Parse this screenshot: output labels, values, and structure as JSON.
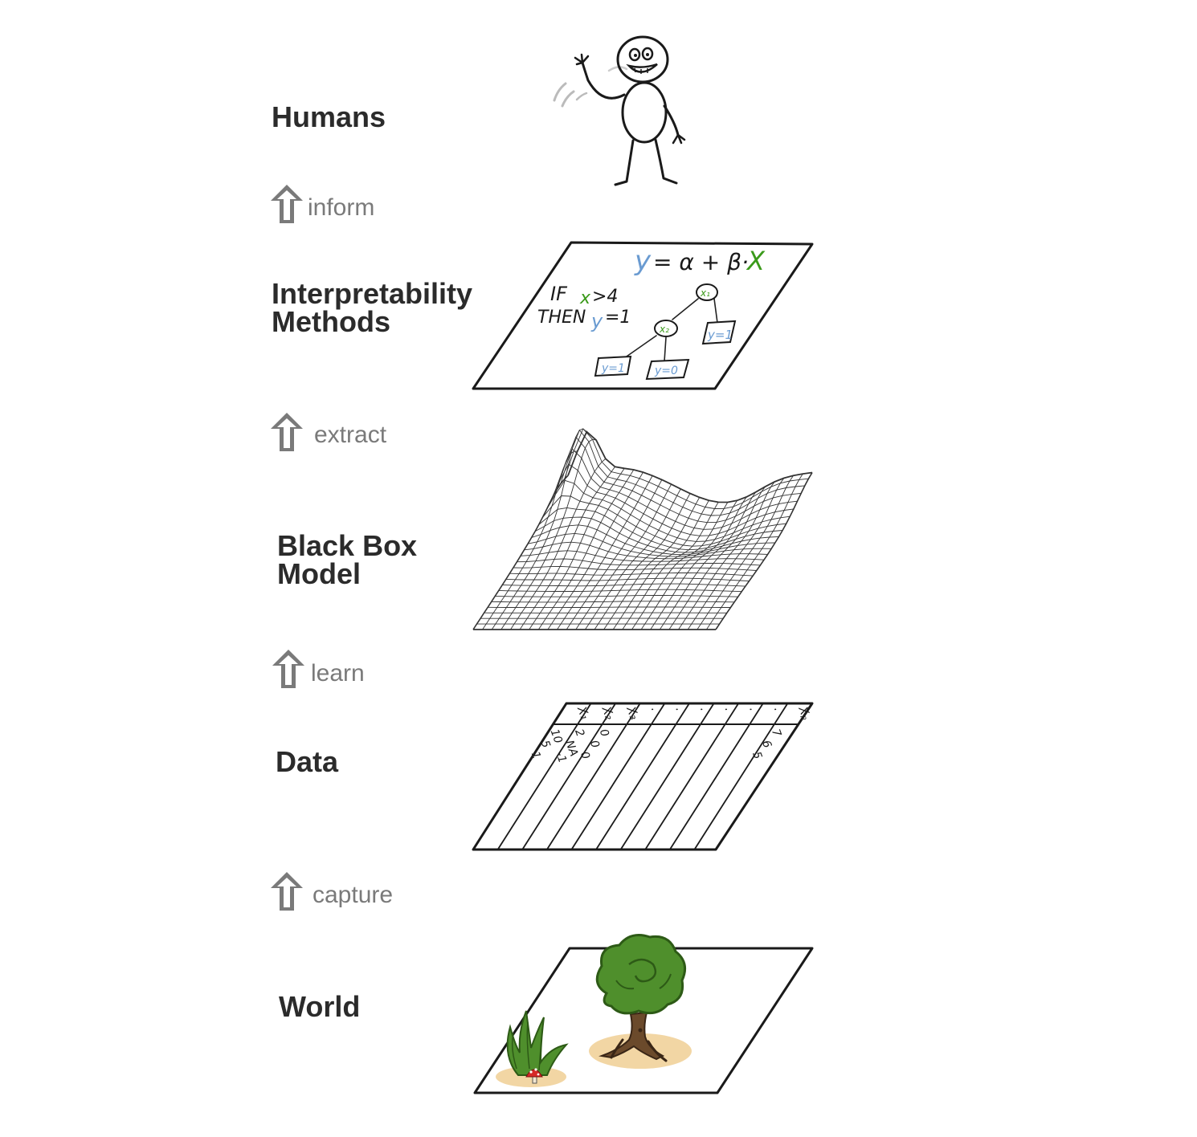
{
  "layers": {
    "humans": "Humans",
    "methods": "Interpretability\nMethods",
    "model": "Black Box\nModel",
    "data": "Data",
    "world": "World"
  },
  "verbs": {
    "inform": "inform",
    "extract": "extract",
    "learn": "learn",
    "capture": "capture"
  },
  "methods_panel": {
    "formula_y": "y",
    "formula_mid": "= α + β·",
    "formula_x": "X",
    "rule_if": "IF",
    "rule_x": "x",
    "rule_cond": ">4",
    "rule_then": "THEN",
    "rule_y": "y",
    "rule_out": "=1",
    "node_a": "x₁",
    "node_b": "x₂",
    "leaf_1": "y=1",
    "leaf_2": "y=1",
    "leaf_3": "y=0"
  },
  "data_table": {
    "headers": [
      "X₁",
      "X₂",
      "X₃",
      ".",
      ".",
      ".",
      ".",
      ".",
      ".",
      "Xₚ"
    ],
    "col1": [
      "10",
      "5",
      "1"
    ],
    "col2": [
      "2",
      "NA",
      "-1"
    ],
    "col3": [
      "0",
      "0",
      "0"
    ],
    "colp": [
      "7",
      "6",
      "5"
    ]
  },
  "colors": {
    "label": "#2b2b2b",
    "verb": "#7a7a7a",
    "arrow": "#7a7a7a",
    "blue": "#6a9bd1",
    "green": "#3a9a1a",
    "tree_green": "#4f8f2c",
    "trunk": "#6b4a2b",
    "ground": "#f0cf94"
  }
}
